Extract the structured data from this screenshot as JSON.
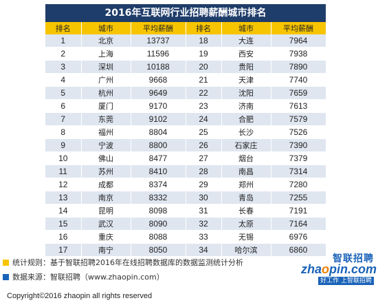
{
  "title": "2016年互联网行业招聘薪酬城市排名",
  "headers": [
    "排名",
    "城市",
    "平均薪酬",
    "排名",
    "城市",
    "平均薪酬"
  ],
  "chart_data": {
    "type": "table",
    "title": "2016年互联网行业招聘薪酬城市排名",
    "columns": [
      "排名",
      "城市",
      "平均薪酬"
    ],
    "rows": [
      {
        "rank": "1",
        "city": "北京",
        "salary": 13737
      },
      {
        "rank": "2",
        "city": "上海",
        "salary": 11596
      },
      {
        "rank": "3",
        "city": "深圳",
        "salary": 10188
      },
      {
        "rank": "4",
        "city": "广州",
        "salary": 9668
      },
      {
        "rank": "5",
        "city": "杭州",
        "salary": 9649
      },
      {
        "rank": "6",
        "city": "厦门",
        "salary": 9170
      },
      {
        "rank": "7",
        "city": "东莞",
        "salary": 9102
      },
      {
        "rank": "8",
        "city": "福州",
        "salary": 8804
      },
      {
        "rank": "9",
        "city": "宁波",
        "salary": 8800
      },
      {
        "rank": "10",
        "city": "佛山",
        "salary": 8477
      },
      {
        "rank": "11",
        "city": "苏州",
        "salary": 8410
      },
      {
        "rank": "12",
        "city": "成都",
        "salary": 8374
      },
      {
        "rank": "13",
        "city": "南京",
        "salary": 8332
      },
      {
        "rank": "14",
        "city": "昆明",
        "salary": 8098
      },
      {
        "rank": "15",
        "city": "武汉",
        "salary": 8090
      },
      {
        "rank": "16",
        "city": "重庆",
        "salary": 8088
      },
      {
        "rank": "17",
        "city": "南宁",
        "salary": 8050
      },
      {
        "rank": "18",
        "city": "大连",
        "salary": 7964
      },
      {
        "rank": "19",
        "city": "西安",
        "salary": 7938
      },
      {
        "rank": "20",
        "city": "贵阳",
        "salary": 7890
      },
      {
        "rank": "21",
        "city": "天津",
        "salary": 7740
      },
      {
        "rank": "22",
        "city": "沈阳",
        "salary": 7659
      },
      {
        "rank": "23",
        "city": "济南",
        "salary": 7613
      },
      {
        "rank": "24",
        "city": "合肥",
        "salary": 7579
      },
      {
        "rank": "25",
        "city": "长沙",
        "salary": 7526
      },
      {
        "rank": "26",
        "city": "石家庄",
        "salary": 7390
      },
      {
        "rank": "27",
        "city": "烟台",
        "salary": 7379
      },
      {
        "rank": "28",
        "city": "南昌",
        "salary": 7314
      },
      {
        "rank": "29",
        "city": "郑州",
        "salary": 7280
      },
      {
        "rank": "30",
        "city": "青岛",
        "salary": 7255
      },
      {
        "rank": "31",
        "city": "长春",
        "salary": 7191
      },
      {
        "rank": "32",
        "city": "太原",
        "salary": 7164
      },
      {
        "rank": "33",
        "city": "无锡",
        "salary": 6976
      },
      {
        "rank": "34",
        "city": "哈尔滨",
        "salary": 6860
      }
    ]
  },
  "notes": [
    "统计规则：基于智联招聘2016年在线招聘数据库的数据监测统计分析",
    "数据来源：智联招聘（www.zhaopin.com）"
  ],
  "copyright": "Copyright©2016 zhaopin all rights reserved",
  "logo": {
    "chinese": "智联招聘",
    "brand_pre": "zha",
    "brand_o": "o",
    "brand_post": "pin.com",
    "slogan": "好工作 上智联招聘"
  },
  "colors": {
    "title_bg": "#1f3d6a",
    "header_bg": "#f7c500",
    "stripe": "#dfe6f0",
    "note_yellow": "#f7c500",
    "note_blue": "#1a63b8",
    "brand_blue": "#1a63b8",
    "brand_orange": "#f07f00"
  }
}
